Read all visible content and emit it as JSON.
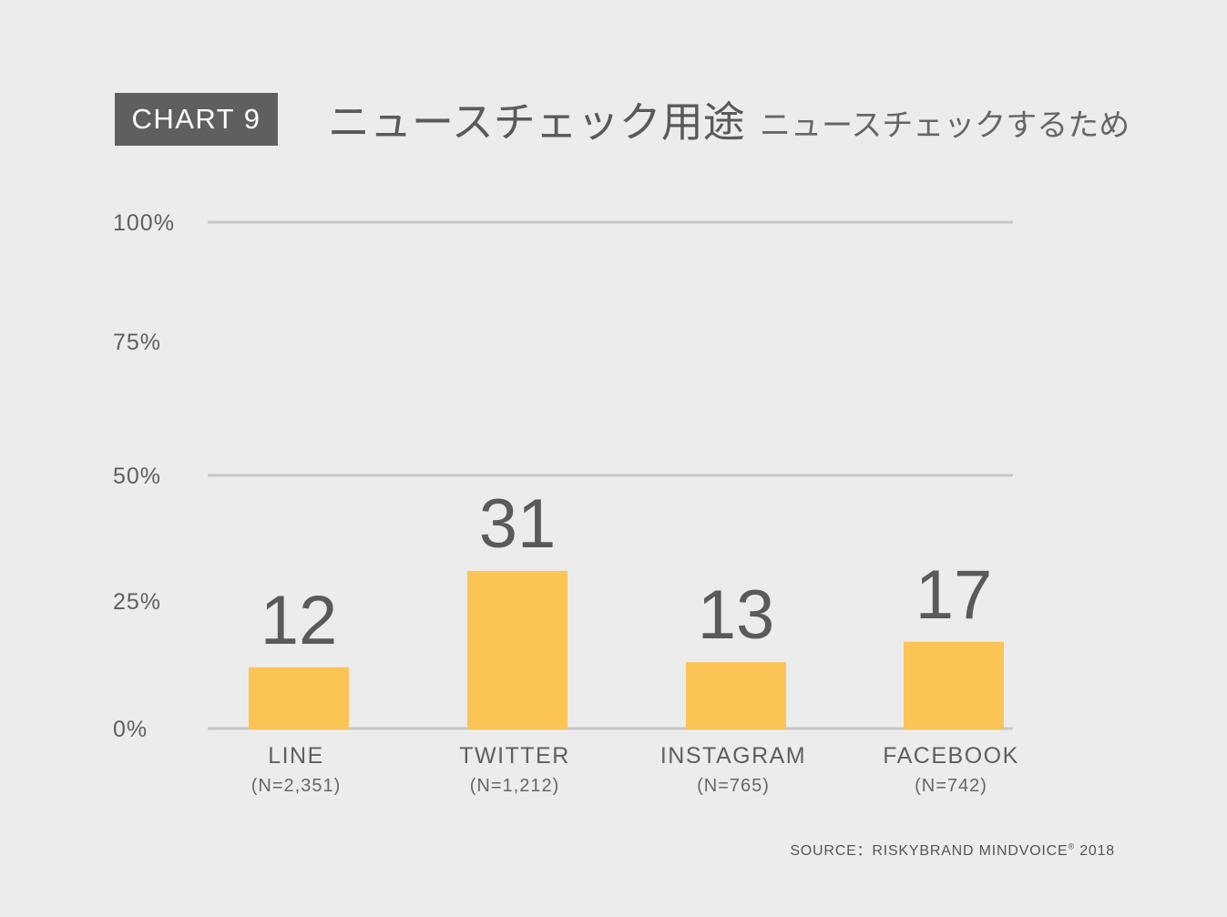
{
  "header": {
    "badge": "CHART 9",
    "title": "ニュースチェック用途",
    "subtitle": "ニュースチェックするため"
  },
  "footer": {
    "source_prefix": "SOURCE：RISKYBRAND MINDVOICE",
    "source_mark": "®",
    "source_year": " 2018"
  },
  "colors": {
    "background": "#ececec",
    "bar": "#fcc454",
    "gridline": "#c7c7c7",
    "badge_bg": "#5f5f5f",
    "text": "#5f5f5f"
  },
  "chart_data": {
    "type": "bar",
    "categories": [
      "LINE",
      "TWITTER",
      "INSTAGRAM",
      "FACEBOOK"
    ],
    "sample_sizes": [
      "(N=2,351)",
      "(N=1,212)",
      "(N=765)",
      "(N=742)"
    ],
    "values": [
      12,
      31,
      13,
      17
    ],
    "ylim": [
      0,
      100
    ],
    "yticks": [
      0,
      25,
      50,
      75,
      100
    ],
    "ytick_labels": [
      "0%",
      "25%",
      "50%",
      "75%",
      "100%"
    ],
    "gridlines_at": [
      0,
      50,
      100
    ],
    "xlabel": "",
    "ylabel": ""
  }
}
